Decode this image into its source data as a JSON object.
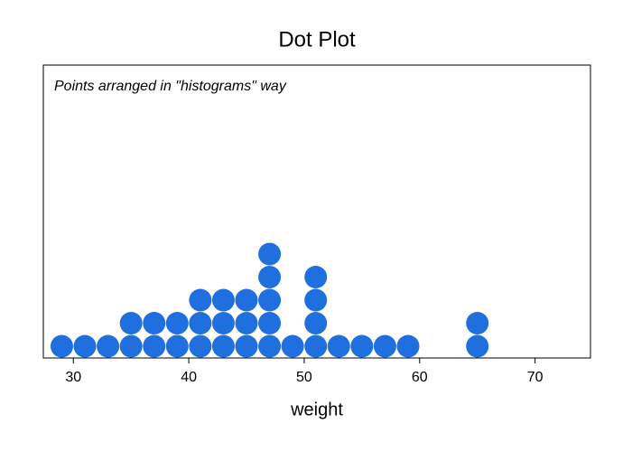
{
  "chart_data": {
    "type": "dot",
    "title": "Dot Plot",
    "annotation": "Points arranged in \"histograms\" way",
    "x_label": "weight",
    "x": [
      29,
      31,
      33,
      35,
      37,
      39,
      41,
      43,
      45,
      47,
      49,
      51,
      53,
      55,
      57,
      59,
      65
    ],
    "values": [
      1,
      1,
      1,
      2,
      2,
      2,
      3,
      3,
      3,
      5,
      1,
      4,
      1,
      1,
      1,
      1,
      2
    ],
    "color": "#1f6fdf",
    "xlim": [
      27.4,
      74.8
    ],
    "xticks": [
      30,
      40,
      50,
      60,
      70
    ]
  }
}
